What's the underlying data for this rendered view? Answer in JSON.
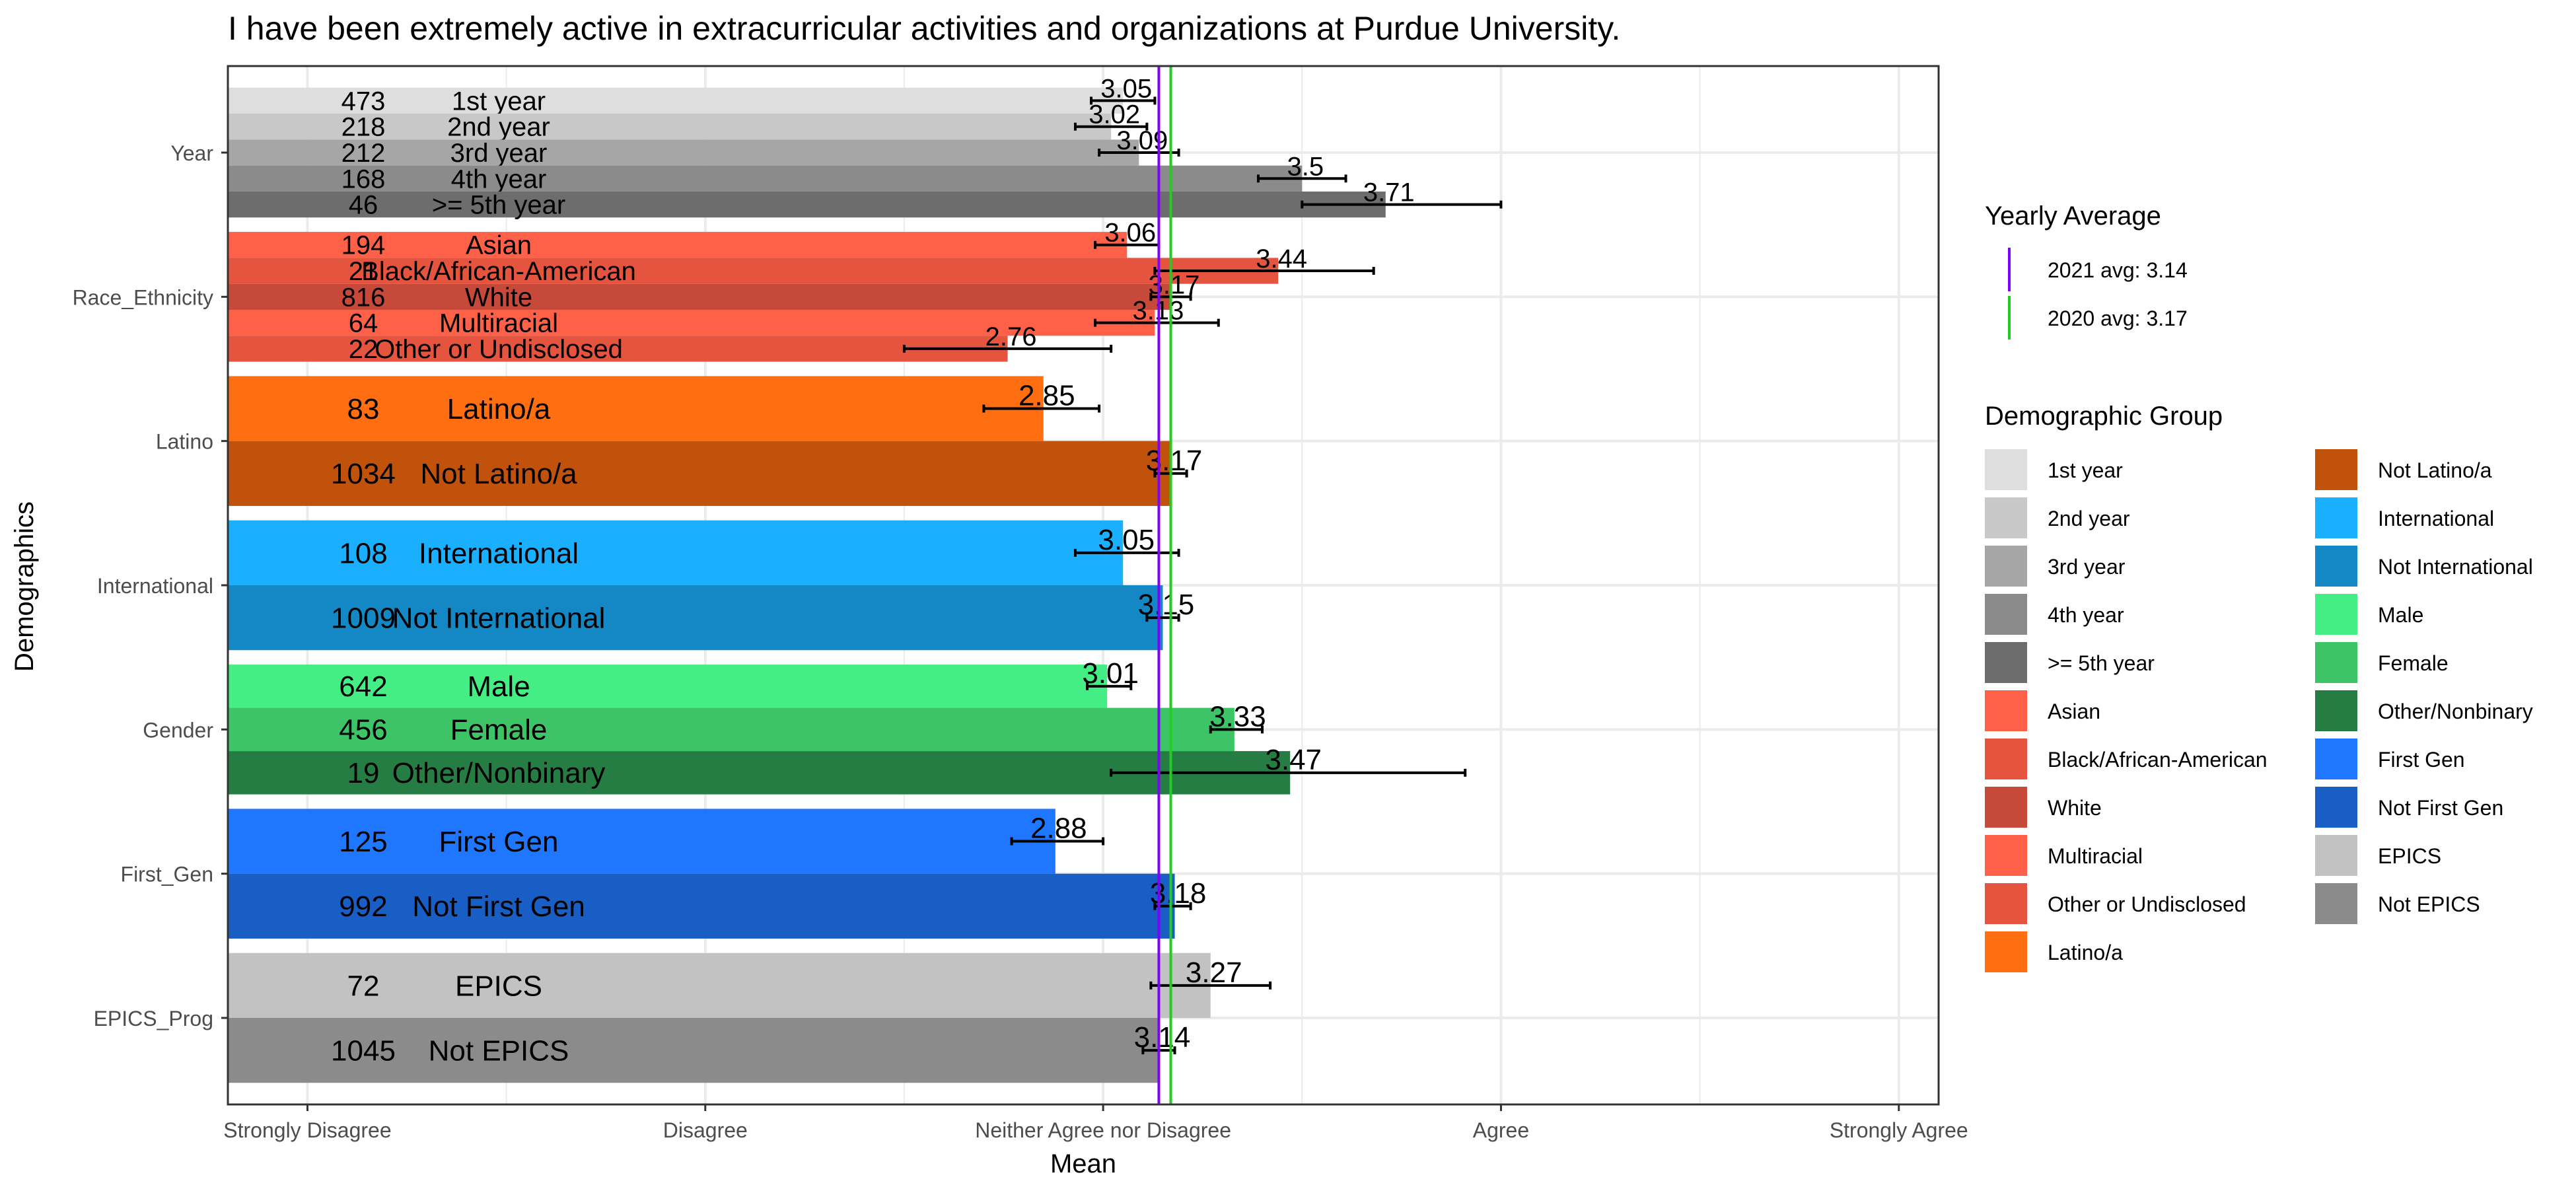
{
  "chart_data": {
    "type": "bar",
    "orientation": "horizontal",
    "title": "I have been extremely active in extracurricular activities and organizations at Purdue University.",
    "xlabel": "Mean",
    "ylabel": "Demographics",
    "xlim": [
      0.8,
      5.1
    ],
    "x_ticks": [
      {
        "value": 1,
        "label": "Strongly Disagree"
      },
      {
        "value": 2,
        "label": "Disagree"
      },
      {
        "value": 3,
        "label": "Neither Agree nor Disagree"
      },
      {
        "value": 4,
        "label": "Agree"
      },
      {
        "value": 5,
        "label": "Strongly Agree"
      }
    ],
    "grid": true,
    "legend_position": "right",
    "reference_lines_title": "Yearly Average",
    "reference_lines": [
      {
        "label": "2021 avg: 3.14",
        "value": 3.14,
        "color": "#7f00ff"
      },
      {
        "label": "2020 avg: 3.17",
        "value": 3.17,
        "color": "#22cc22"
      }
    ],
    "legend_title": "Demographic Group",
    "groups": [
      {
        "name": "Year",
        "bars": [
          {
            "label": "1st year",
            "n": "473",
            "mean": 3.05,
            "mean_label": "3.05",
            "err": [
              2.97,
              3.13
            ],
            "color": "#dedede"
          },
          {
            "label": "2nd year",
            "n": "218",
            "mean": 3.02,
            "mean_label": "3.02",
            "err": [
              2.93,
              3.11
            ],
            "color": "#c8c8c8"
          },
          {
            "label": "3rd year",
            "n": "212",
            "mean": 3.09,
            "mean_label": "3.09",
            "err": [
              2.99,
              3.19
            ],
            "color": "#a6a6a6"
          },
          {
            "label": "4th year",
            "n": "168",
            "mean": 3.5,
            "mean_label": "3.5",
            "err": [
              3.39,
              3.61
            ],
            "color": "#8b8b8b"
          },
          {
            "label": ">= 5th year",
            "n": "46",
            "mean": 3.71,
            "mean_label": "3.71",
            "err": [
              3.5,
              4.0
            ],
            "color": "#6d6d6d"
          }
        ]
      },
      {
        "name": "Race_Ethnicity",
        "bars": [
          {
            "label": "Asian",
            "n": "194",
            "mean": 3.06,
            "mean_label": "3.06",
            "err": [
              2.98,
              3.14
            ],
            "color": "#ff6048"
          },
          {
            "label": "Black/African-American",
            "n": "21",
            "mean": 3.44,
            "mean_label": "3.44",
            "err": [
              3.13,
              3.68
            ],
            "color": "#e4543e"
          },
          {
            "label": "White",
            "n": "816",
            "mean": 3.17,
            "mean_label": "3.17",
            "err": [
              3.12,
              3.22
            ],
            "color": "#c7493a"
          },
          {
            "label": "Multiracial",
            "n": "64",
            "mean": 3.13,
            "mean_label": "3.13",
            "err": [
              2.98,
              3.29
            ],
            "color": "#ff6048"
          },
          {
            "label": "Other or Undisclosed",
            "n": "22",
            "mean": 2.76,
            "mean_label": "2.76",
            "err": [
              2.5,
              3.02
            ],
            "color": "#e4543e"
          }
        ]
      },
      {
        "name": "Latino",
        "bars": [
          {
            "label": "Latino/a",
            "n": "83",
            "mean": 2.85,
            "mean_label": "2.85",
            "err": [
              2.7,
              2.99
            ],
            "color": "#ff6e11"
          },
          {
            "label": "Not Latino/a",
            "n": "1034",
            "mean": 3.17,
            "mean_label": "3.17",
            "err": [
              3.13,
              3.21
            ],
            "color": "#c0520c"
          }
        ]
      },
      {
        "name": "International",
        "bars": [
          {
            "label": "International",
            "n": "108",
            "mean": 3.05,
            "mean_label": "3.05",
            "err": [
              2.93,
              3.19
            ],
            "color": "#1aafff"
          },
          {
            "label": "Not International",
            "n": "1009",
            "mean": 3.15,
            "mean_label": "3.15",
            "err": [
              3.11,
              3.19
            ],
            "color": "#1388c5"
          }
        ]
      },
      {
        "name": "Gender",
        "bars": [
          {
            "label": "Male",
            "n": "642",
            "mean": 3.01,
            "mean_label": "3.01",
            "err": [
              2.96,
              3.07
            ],
            "color": "#45ee84"
          },
          {
            "label": "Female",
            "n": "456",
            "mean": 3.33,
            "mean_label": "3.33",
            "err": [
              3.27,
              3.4
            ],
            "color": "#3cc467"
          },
          {
            "label": "Other/Nonbinary",
            "n": "19",
            "mean": 3.47,
            "mean_label": "3.47",
            "err": [
              3.02,
              3.91
            ],
            "color": "#257d43"
          }
        ]
      },
      {
        "name": "First_Gen",
        "bars": [
          {
            "label": "First Gen",
            "n": "125",
            "mean": 2.88,
            "mean_label": "2.88",
            "err": [
              2.77,
              3.0
            ],
            "color": "#1f77ff"
          },
          {
            "label": "Not First Gen",
            "n": "992",
            "mean": 3.18,
            "mean_label": "3.18",
            "err": [
              3.13,
              3.22
            ],
            "color": "#185ec4"
          }
        ]
      },
      {
        "name": "EPICS_Prog",
        "bars": [
          {
            "label": "EPICS",
            "n": "72",
            "mean": 3.27,
            "mean_label": "3.27",
            "err": [
              3.12,
              3.42
            ],
            "color": "#c2c2c2"
          },
          {
            "label": "Not EPICS",
            "n": "1045",
            "mean": 3.14,
            "mean_label": "3.14",
            "err": [
              3.1,
              3.18
            ],
            "color": "#8b8b8b"
          }
        ]
      }
    ],
    "legend_items": [
      {
        "label": "1st year",
        "color": "#dedede"
      },
      {
        "label": "2nd year",
        "color": "#c8c8c8"
      },
      {
        "label": "3rd year",
        "color": "#a6a6a6"
      },
      {
        "label": "4th year",
        "color": "#8b8b8b"
      },
      {
        "label": ">= 5th year",
        "color": "#6d6d6d"
      },
      {
        "label": "Asian",
        "color": "#ff6048"
      },
      {
        "label": "Black/African-American",
        "color": "#e4543e"
      },
      {
        "label": "White",
        "color": "#c7493a"
      },
      {
        "label": "Multiracial",
        "color": "#ff6048"
      },
      {
        "label": "Other or Undisclosed",
        "color": "#e4543e"
      },
      {
        "label": "Latino/a",
        "color": "#ff6e11"
      },
      {
        "label": "Not Latino/a",
        "color": "#c0520c"
      },
      {
        "label": "International",
        "color": "#1aafff"
      },
      {
        "label": "Not International",
        "color": "#1388c5"
      },
      {
        "label": "Male",
        "color": "#45ee84"
      },
      {
        "label": "Female",
        "color": "#3cc467"
      },
      {
        "label": "Other/Nonbinary",
        "color": "#257d43"
      },
      {
        "label": "First Gen",
        "color": "#1f77ff"
      },
      {
        "label": "Not First Gen",
        "color": "#185ec4"
      },
      {
        "label": "EPICS",
        "color": "#c2c2c2"
      },
      {
        "label": "Not EPICS",
        "color": "#8b8b8b"
      }
    ]
  }
}
